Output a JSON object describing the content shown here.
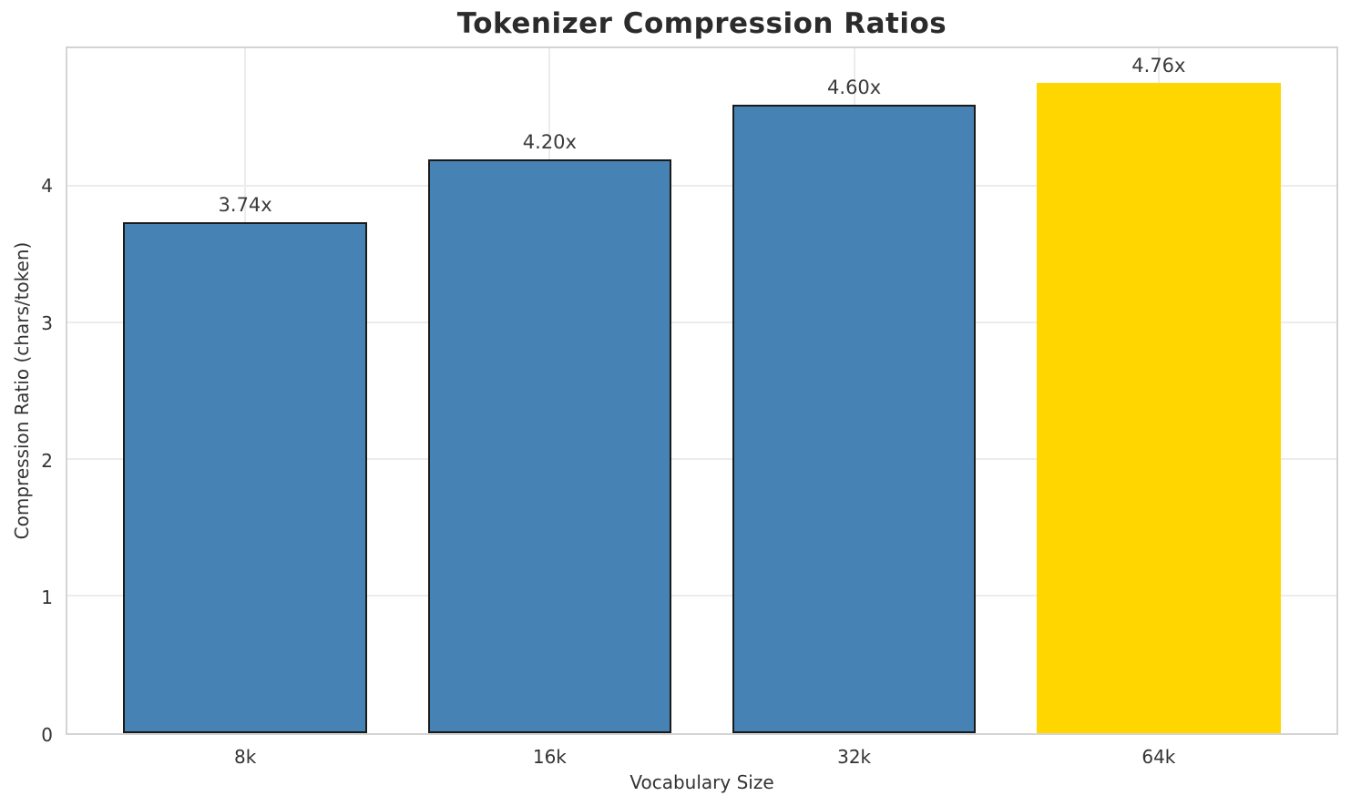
{
  "title": "Tokenizer Compression Ratios",
  "colors": {
    "bar_default": "#4683b4",
    "bar_highlight": "#ffd600",
    "bar_edge": "#1a1a1a",
    "grid": "#ececec",
    "spine": "#d4d4d4",
    "title_text": "#2b2b2b",
    "tick_text": "#333333",
    "value_label_text": "#3a3a3a"
  },
  "chart_data": {
    "type": "bar",
    "title": "Tokenizer Compression Ratios",
    "xlabel": "Vocabulary Size",
    "ylabel": "Compression Ratio (chars/token)",
    "categories": [
      "8k",
      "16k",
      "32k",
      "64k"
    ],
    "values": [
      3.74,
      4.2,
      4.6,
      4.76
    ],
    "value_labels": [
      "3.74x",
      "4.20x",
      "4.60x",
      "4.76x"
    ],
    "bar_colors": [
      "#4683b4",
      "#4683b4",
      "#4683b4",
      "#ffd600"
    ],
    "bar_edges": [
      "#1a1a1a",
      "#1a1a1a",
      "#1a1a1a",
      "none"
    ],
    "highlight_category": "64k",
    "ylim": [
      0,
      5.015
    ],
    "yticks": [
      0,
      1,
      2,
      3,
      4
    ],
    "grid": true,
    "grid_axes": "both",
    "legend_position": "none",
    "bar_width_fraction": 0.8
  }
}
